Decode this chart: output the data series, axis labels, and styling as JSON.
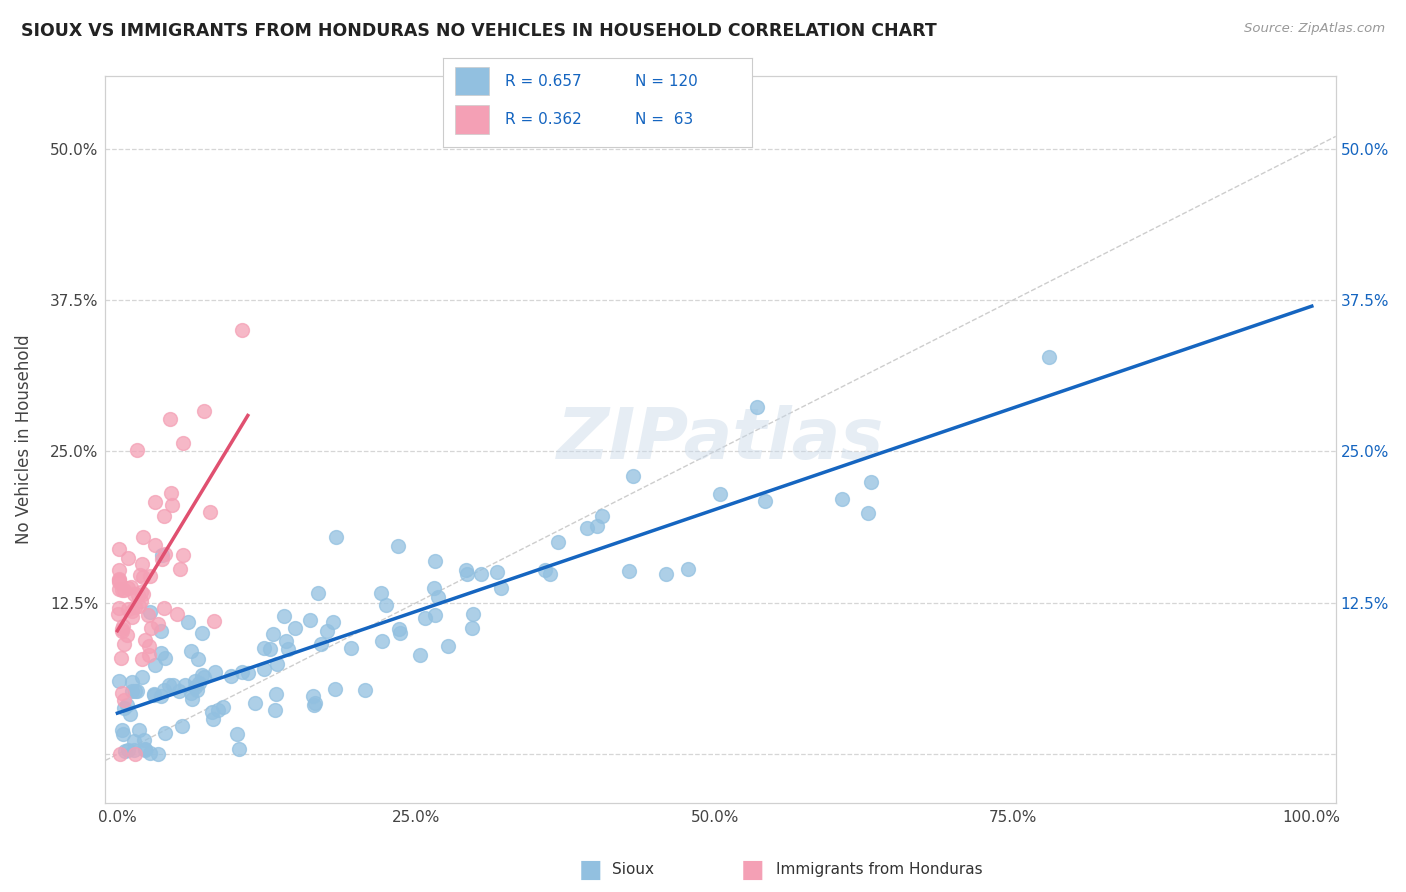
{
  "title": "SIOUX VS IMMIGRANTS FROM HONDURAS NO VEHICLES IN HOUSEHOLD CORRELATION CHART",
  "source": "Source: ZipAtlas.com",
  "ylabel": "No Vehicles in Household",
  "xlim": [
    -0.01,
    1.02
  ],
  "ylim": [
    -0.04,
    0.56
  ],
  "x_ticks": [
    0.0,
    0.25,
    0.5,
    0.75,
    1.0
  ],
  "x_tick_labels": [
    "0.0%",
    "25.0%",
    "50.0%",
    "75.0%",
    "100.0%"
  ],
  "y_ticks": [
    0.0,
    0.125,
    0.25,
    0.375,
    0.5
  ],
  "y_tick_labels": [
    "",
    "12.5%",
    "25.0%",
    "37.5%",
    "50.0%"
  ],
  "sioux_R": 0.657,
  "sioux_N": 120,
  "honduras_R": 0.362,
  "honduras_N": 63,
  "sioux_color": "#92c0e0",
  "honduras_color": "#f4a0b5",
  "sioux_line_color": "#1565c0",
  "honduras_line_color": "#e05070",
  "diag_color": "#c8c8c8",
  "background_color": "#ffffff",
  "grid_color": "#cccccc",
  "right_tick_color": "#1565c0",
  "watermark": "ZIPatlas"
}
